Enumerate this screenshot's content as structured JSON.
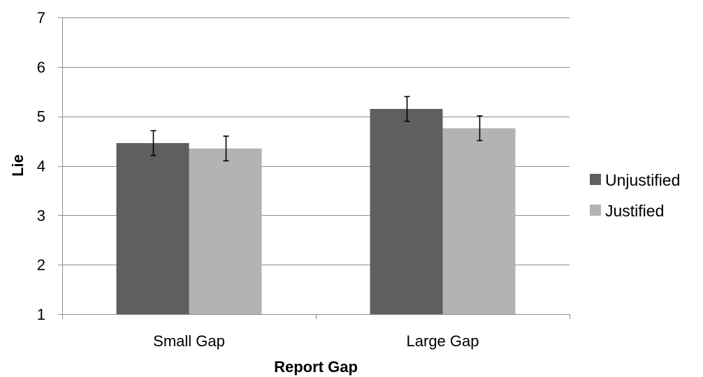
{
  "chart_data": {
    "type": "bar",
    "title": "",
    "xlabel": "Report Gap",
    "ylabel": "Lie",
    "ylim": [
      1,
      7
    ],
    "yticks": [
      "1",
      "2",
      "3",
      "4",
      "5",
      "6",
      "7"
    ],
    "categories": [
      "Small Gap",
      "Large Gap"
    ],
    "series": [
      {
        "name": "Unjustified",
        "values": [
          4.46,
          5.15
        ],
        "error": [
          0.25,
          0.25
        ],
        "color": "#5f5f5f"
      },
      {
        "name": "Justified",
        "values": [
          4.35,
          4.76
        ],
        "error": [
          0.25,
          0.25
        ],
        "color": "#b3b3b3"
      }
    ],
    "grid": "horizontal",
    "legend_position": "right",
    "colors": {
      "gridline": "#8c8c8c",
      "axis": "#8c8c8c",
      "error_bar": "#000000"
    }
  }
}
